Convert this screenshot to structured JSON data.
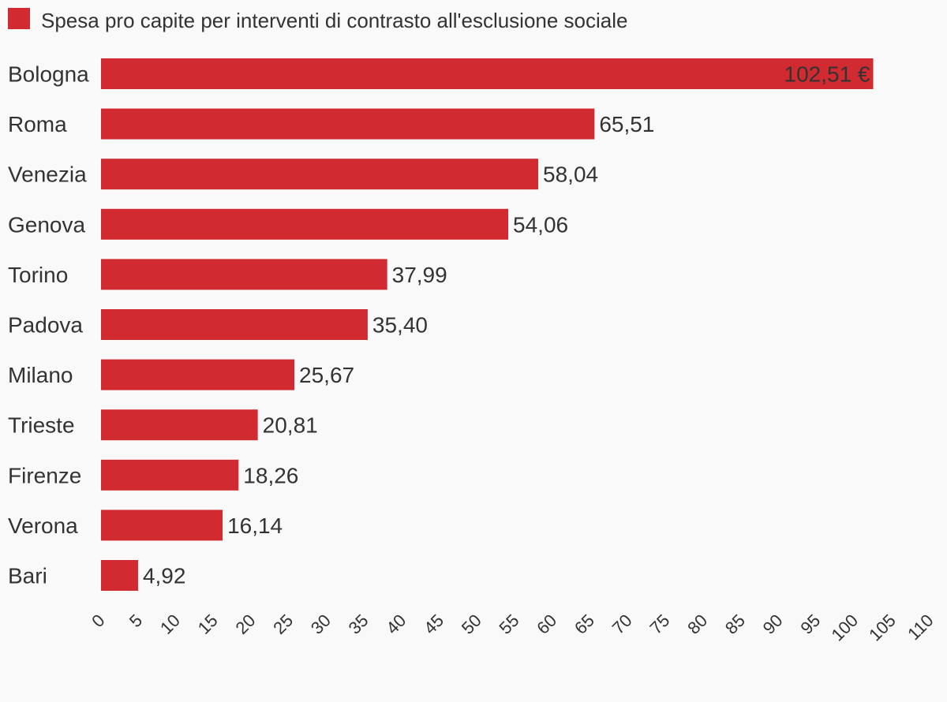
{
  "chart_data": {
    "type": "bar",
    "orientation": "horizontal",
    "title": "",
    "xlabel": "",
    "ylabel": "",
    "color": "#d12b31",
    "series": [
      {
        "name": "Spesa pro capite per interventi di contrasto all'esclusione sociale",
        "values": [
          102.51,
          65.51,
          58.04,
          54.06,
          37.99,
          35.4,
          25.67,
          20.81,
          18.26,
          16.14,
          4.92
        ]
      }
    ],
    "categories": [
      "Bologna",
      "Roma",
      "Venezia",
      "Genova",
      "Torino",
      "Padova",
      "Milano",
      "Trieste",
      "Firenze",
      "Verona",
      "Bari"
    ],
    "value_labels": [
      "102,51 €",
      "65,51",
      "58,04",
      "54,06",
      "37,99",
      "35,40",
      "25,67",
      "20,81",
      "18,26",
      "16,14",
      "4,92"
    ],
    "xlim": [
      0,
      110
    ],
    "x_ticks": [
      0,
      5,
      10,
      15,
      20,
      25,
      30,
      35,
      40,
      45,
      50,
      55,
      60,
      65,
      70,
      75,
      80,
      85,
      90,
      95,
      100,
      105,
      110
    ],
    "x_tick_labels": [
      "0",
      "5",
      "10",
      "15",
      "20",
      "25",
      "30",
      "35",
      "40",
      "45",
      "50",
      "55",
      "60",
      "65",
      "70",
      "75",
      "80",
      "85",
      "90",
      "95",
      "100",
      "105",
      "110"
    ],
    "legend": "top-left",
    "grid": false
  }
}
